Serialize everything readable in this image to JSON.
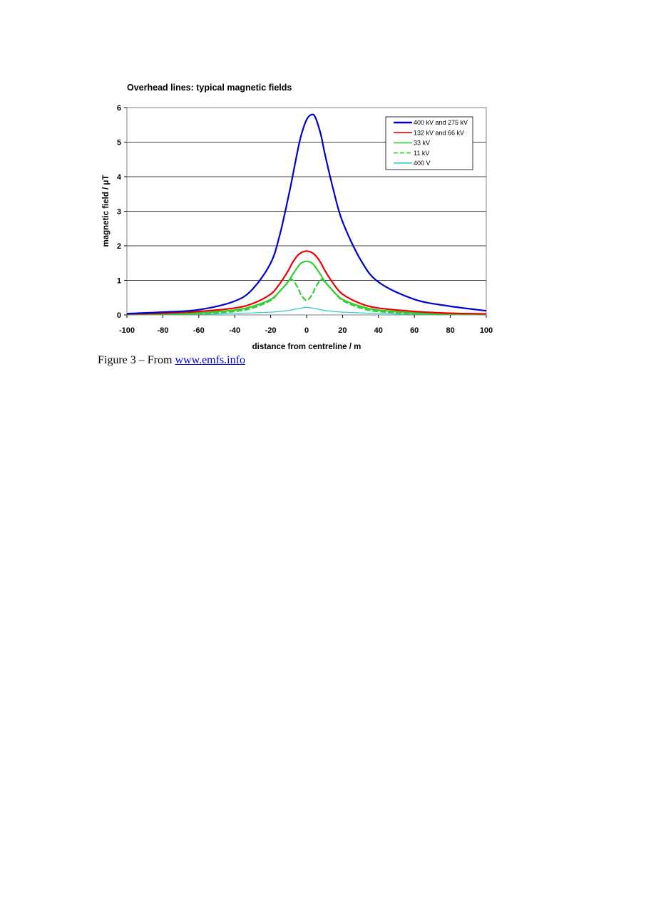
{
  "chart_data": {
    "type": "line",
    "title": "Overhead lines: typical magnetic fields",
    "xlabel": "distance from centreline / m",
    "ylabel": "magnetic field / μT",
    "xlim": [
      -100,
      100
    ],
    "ylim": [
      0,
      6
    ],
    "x_ticks": [
      "-100",
      "-80",
      "-60",
      "-40",
      "-20",
      "0",
      "20",
      "40",
      "60",
      "80",
      "100"
    ],
    "y_ticks": [
      "0",
      "1",
      "2",
      "3",
      "4",
      "5",
      "6"
    ],
    "grid": "horizontal",
    "legend": "top-right",
    "x": [
      -100,
      -80,
      -60,
      -40,
      -30,
      -20,
      -15,
      -10,
      -8,
      -5,
      -3,
      0,
      3,
      5,
      8,
      10,
      15,
      20,
      30,
      40,
      60,
      80,
      100
    ],
    "series": [
      {
        "name": "400 kV and 275 kV",
        "color": "#0000cc",
        "dash": "solid",
        "values": [
          0.04,
          0.08,
          0.15,
          0.4,
          0.75,
          1.5,
          2.3,
          3.45,
          3.95,
          4.75,
          5.2,
          5.65,
          5.8,
          5.7,
          5.2,
          4.7,
          3.6,
          2.7,
          1.6,
          0.95,
          0.45,
          0.25,
          0.12
        ]
      },
      {
        "name": "132 kV and 66 kV",
        "color": "#ee0000",
        "dash": "solid",
        "values": [
          0.03,
          0.05,
          0.1,
          0.2,
          0.33,
          0.6,
          0.9,
          1.3,
          1.5,
          1.72,
          1.8,
          1.85,
          1.8,
          1.72,
          1.5,
          1.3,
          0.9,
          0.6,
          0.33,
          0.2,
          0.1,
          0.05,
          0.03
        ]
      },
      {
        "name": "33 kV",
        "color": "#33cc33",
        "dash": "solid",
        "values": [
          0.02,
          0.03,
          0.06,
          0.14,
          0.25,
          0.45,
          0.68,
          0.98,
          1.15,
          1.38,
          1.5,
          1.55,
          1.5,
          1.38,
          1.15,
          0.98,
          0.68,
          0.45,
          0.25,
          0.14,
          0.06,
          0.03,
          0.02
        ]
      },
      {
        "name": "11 kV",
        "color": "#33cc33",
        "dash": "dash",
        "values": [
          0.01,
          0.02,
          0.04,
          0.1,
          0.2,
          0.42,
          0.68,
          0.96,
          1.02,
          0.8,
          0.58,
          0.42,
          0.58,
          0.8,
          1.02,
          0.96,
          0.68,
          0.42,
          0.2,
          0.1,
          0.04,
          0.02,
          0.01
        ]
      },
      {
        "name": "400 V",
        "color": "#33cccc",
        "dash": "solid",
        "values": [
          0.0,
          0.01,
          0.02,
          0.04,
          0.06,
          0.08,
          0.1,
          0.13,
          0.15,
          0.18,
          0.2,
          0.22,
          0.2,
          0.18,
          0.15,
          0.13,
          0.1,
          0.08,
          0.06,
          0.04,
          0.02,
          0.01,
          0.0
        ]
      }
    ]
  },
  "caption": {
    "prefix": "Figure 3 – From ",
    "link_text": "www.emfs.info"
  }
}
